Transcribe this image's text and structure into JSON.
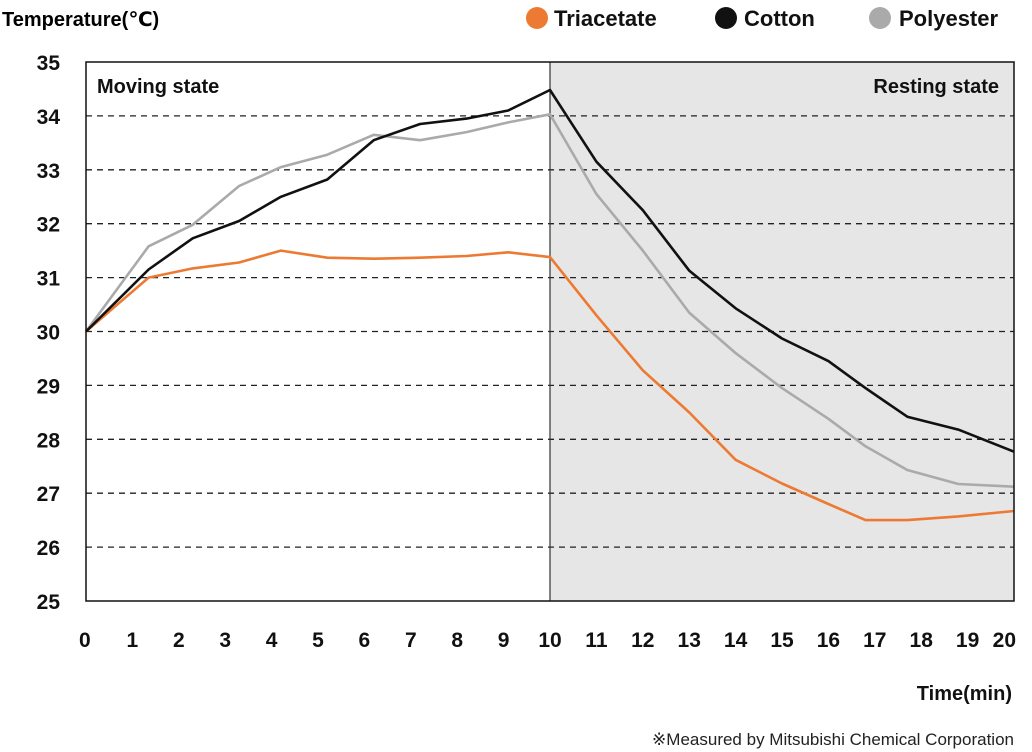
{
  "chart_data": {
    "type": "line",
    "ylabel": "Temperature(℃)",
    "xlabel": "Time(min)",
    "ylim": [
      25,
      35
    ],
    "xlim": [
      0,
      20
    ],
    "yticks": [
      "25",
      "26",
      "27",
      "28",
      "29",
      "30",
      "31",
      "32",
      "33",
      "34",
      "35"
    ],
    "xticks": [
      "0",
      "1",
      "2",
      "3",
      "4",
      "5",
      "6",
      "7",
      "8",
      "9",
      "10",
      "11",
      "12",
      "13",
      "14",
      "15",
      "16",
      "17",
      "18",
      "19",
      "20"
    ],
    "grid": "horizontal dashed",
    "legend_position": "top-right",
    "regions": [
      {
        "label": "Moving state",
        "x": [
          0,
          10
        ],
        "color": "#ffffff"
      },
      {
        "label": "Resting state",
        "x": [
          10,
          20
        ],
        "color": "#e6e6e6"
      }
    ],
    "series": [
      {
        "name": "Triacetate",
        "color": "#ec7a32",
        "points": [
          [
            0,
            30.0
          ],
          [
            1.35,
            31.0
          ],
          [
            2.3,
            31.17
          ],
          [
            3.3,
            31.28
          ],
          [
            4.2,
            31.5
          ],
          [
            5.2,
            31.37
          ],
          [
            6.2,
            31.35
          ],
          [
            7.2,
            31.37
          ],
          [
            8.2,
            31.4
          ],
          [
            9.1,
            31.47
          ],
          [
            10,
            31.38
          ],
          [
            11,
            30.3
          ],
          [
            12,
            29.28
          ],
          [
            13,
            28.5
          ],
          [
            14,
            27.62
          ],
          [
            15,
            27.18
          ],
          [
            16,
            26.8
          ],
          [
            16.8,
            26.5
          ],
          [
            17.7,
            26.5
          ],
          [
            18.8,
            26.57
          ],
          [
            20,
            26.67
          ]
        ]
      },
      {
        "name": "Cotton",
        "color": "#111111",
        "points": [
          [
            0,
            30.0
          ],
          [
            1.35,
            31.15
          ],
          [
            2.3,
            31.73
          ],
          [
            3.3,
            32.05
          ],
          [
            4.2,
            32.5
          ],
          [
            5.2,
            32.82
          ],
          [
            6.2,
            33.55
          ],
          [
            7.2,
            33.85
          ],
          [
            8.2,
            33.95
          ],
          [
            9.1,
            34.1
          ],
          [
            10,
            34.48
          ],
          [
            11,
            33.15
          ],
          [
            12,
            32.25
          ],
          [
            13,
            31.13
          ],
          [
            14,
            30.43
          ],
          [
            15,
            29.87
          ],
          [
            16,
            29.45
          ],
          [
            16.8,
            28.95
          ],
          [
            17.7,
            28.42
          ],
          [
            18.8,
            28.18
          ],
          [
            20,
            27.77
          ]
        ]
      },
      {
        "name": "Polyester",
        "color": "#aaaaaa",
        "points": [
          [
            0,
            30.0
          ],
          [
            1.35,
            31.58
          ],
          [
            2.3,
            31.98
          ],
          [
            3.3,
            32.7
          ],
          [
            4.2,
            33.05
          ],
          [
            5.2,
            33.28
          ],
          [
            6.2,
            33.65
          ],
          [
            7.2,
            33.55
          ],
          [
            8.2,
            33.7
          ],
          [
            9.1,
            33.88
          ],
          [
            10,
            34.03
          ],
          [
            11,
            32.55
          ],
          [
            12,
            31.5
          ],
          [
            13,
            30.35
          ],
          [
            14,
            29.6
          ],
          [
            15,
            28.95
          ],
          [
            16,
            28.38
          ],
          [
            16.8,
            27.87
          ],
          [
            17.7,
            27.43
          ],
          [
            18.8,
            27.17
          ],
          [
            20,
            27.12
          ]
        ]
      }
    ],
    "note": "※Measured by Mitsubishi Chemical Corporation"
  }
}
